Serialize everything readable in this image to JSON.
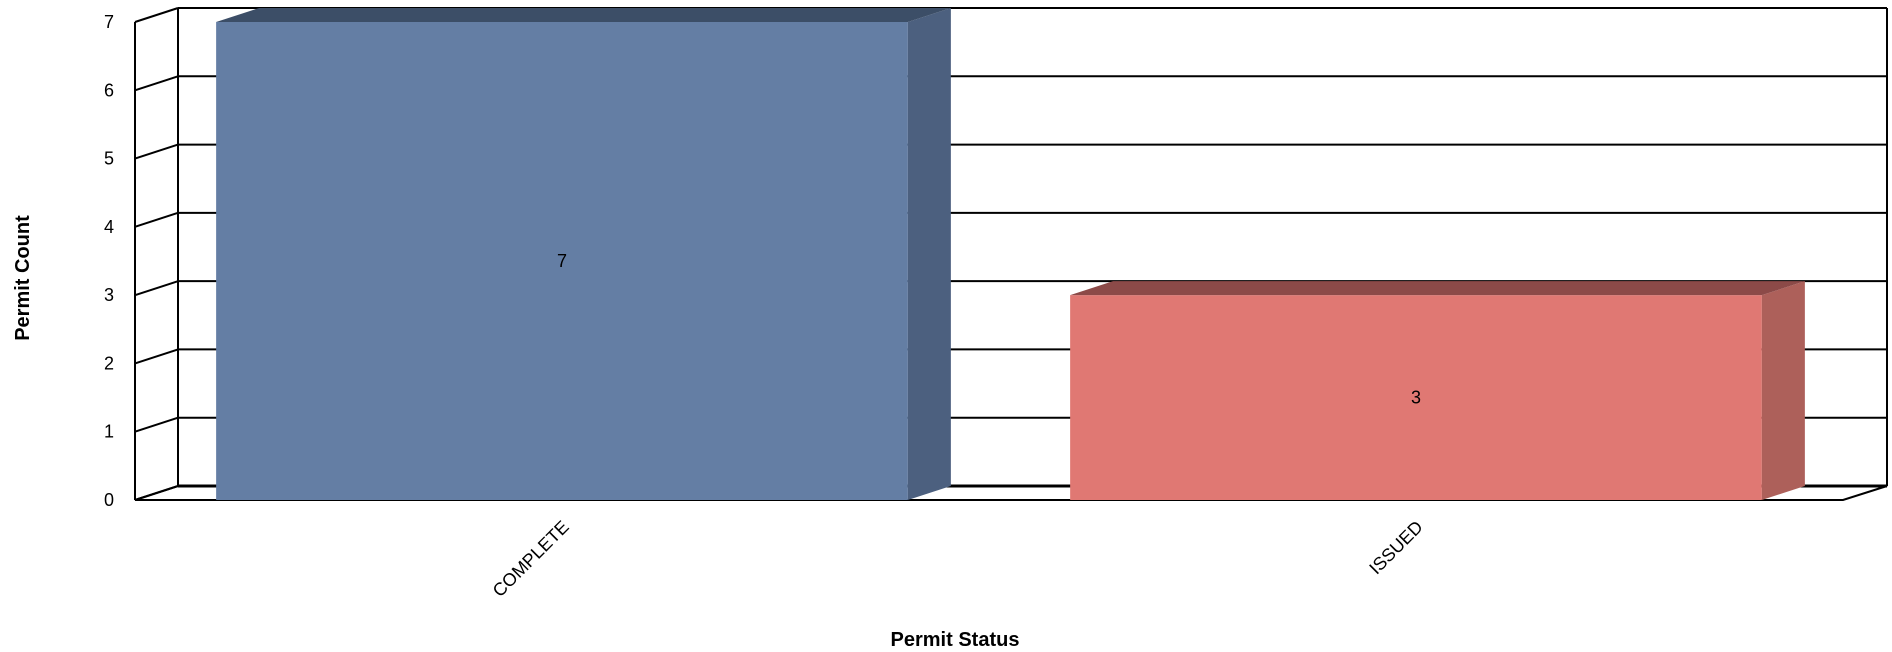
{
  "chart_data": {
    "type": "bar",
    "categories": [
      "COMPLETE",
      "ISSUED"
    ],
    "values": [
      7,
      3
    ],
    "data_labels": [
      "7",
      "3"
    ],
    "xlabel": "Permit Status",
    "ylabel": "Permit Count",
    "ylim": [
      0,
      7
    ],
    "yticks": [
      "0",
      "1",
      "2",
      "3",
      "4",
      "5",
      "6",
      "7"
    ],
    "grid": true,
    "style": "3d",
    "colors": {
      "COMPLETE": {
        "front": "#647EA4",
        "side": "#4C607F",
        "top": "#3C4E67"
      },
      "ISSUED": {
        "front": "#E07873",
        "side": "#AD605A",
        "top": "#8C4A48"
      }
    }
  }
}
